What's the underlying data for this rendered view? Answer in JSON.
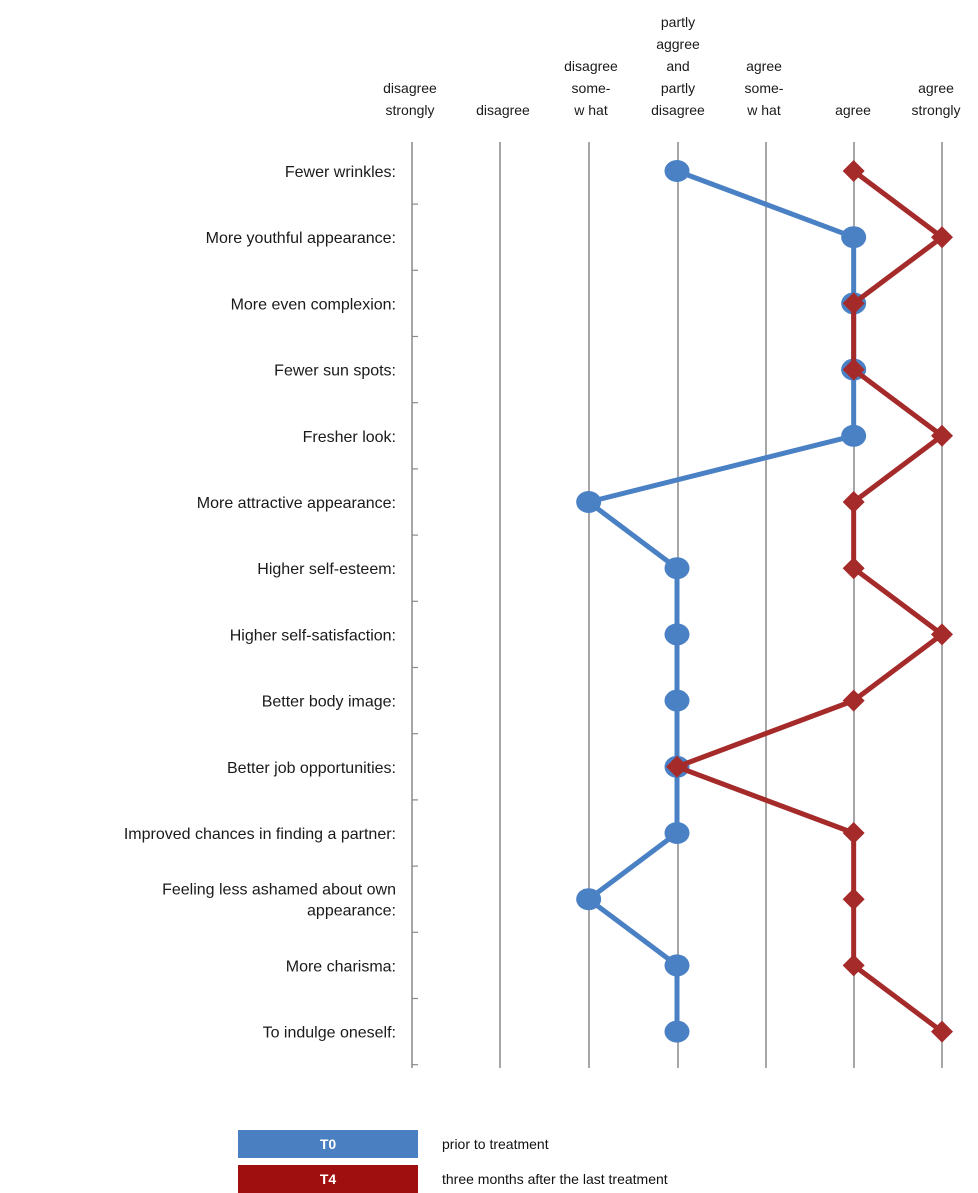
{
  "chart_data": {
    "type": "line",
    "orientation": "horizontal-scale",
    "scale_labels": [
      [
        "disagree",
        "strongly"
      ],
      [
        "disagree"
      ],
      [
        "disagree",
        "some-",
        "w hat"
      ],
      [
        "partly",
        "aggree",
        "and",
        "partly",
        "disagree"
      ],
      [
        "agree",
        "some-",
        "w hat"
      ],
      [
        "agree"
      ],
      [
        "agree",
        "strongly"
      ]
    ],
    "categories": [
      [
        "Fewer wrinkles:"
      ],
      [
        "More youthful appearance:"
      ],
      [
        "More even complexion:"
      ],
      [
        "Fewer sun spots:"
      ],
      [
        "Fresher look:"
      ],
      [
        "More attractive appearance:"
      ],
      [
        "Higher self-esteem:"
      ],
      [
        "Higher self-satisfaction:"
      ],
      [
        "Better body image:"
      ],
      [
        "Better job opportunities:"
      ],
      [
        "Improved chances in finding a partner:"
      ],
      [
        "Feeling less ashamed about own",
        "appearance:"
      ],
      [
        "More charisma:"
      ],
      [
        "To indulge oneself:"
      ]
    ],
    "scale_range": [
      1,
      7
    ],
    "grid": true,
    "series": [
      {
        "name": "T0",
        "description": "prior to treatment",
        "color": "#4a80c4",
        "marker": "circle",
        "values": [
          4,
          6,
          6,
          6,
          6,
          3,
          4,
          4,
          4,
          4,
          4,
          3,
          4,
          4
        ]
      },
      {
        "name": "T4",
        "description": "three months after the last treatment",
        "color": "#a52a2a",
        "marker": "diamond",
        "values": [
          6,
          7,
          6,
          6,
          7,
          6,
          6,
          7,
          6,
          4,
          6,
          6,
          6,
          7
        ]
      }
    ],
    "legend_position": "bottom"
  },
  "legend": {
    "t0_label": "T0",
    "t0_text": "prior to treatment",
    "t0_color": "#4a7fc1",
    "t4_label": "T4",
    "t4_text": "three months after the last treatment",
    "t4_color": "#a00f0f"
  }
}
